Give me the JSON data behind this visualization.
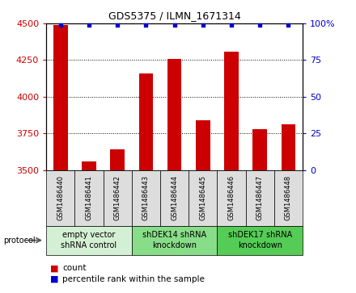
{
  "title": "GDS5375 / ILMN_1671314",
  "categories": [
    "GSM1486440",
    "GSM1486441",
    "GSM1486442",
    "GSM1486443",
    "GSM1486444",
    "GSM1486445",
    "GSM1486446",
    "GSM1486447",
    "GSM1486448"
  ],
  "counts": [
    4490,
    3560,
    3640,
    4160,
    4260,
    3840,
    4310,
    3780,
    3810
  ],
  "percentiles": [
    99,
    99,
    99,
    99,
    99,
    99,
    99,
    99,
    99
  ],
  "ylim_left": [
    3500,
    4500
  ],
  "ylim_right": [
    0,
    100
  ],
  "yticks_left": [
    3500,
    3750,
    4000,
    4250,
    4500
  ],
  "yticks_right": [
    0,
    25,
    50,
    75,
    100
  ],
  "bar_color": "#cc0000",
  "dot_color": "#0000cc",
  "bar_width": 0.5,
  "groups": [
    {
      "label": "empty vector\nshRNA control",
      "start": 0,
      "end": 3,
      "color": "#d4f0d4"
    },
    {
      "label": "shDEK14 shRNA\nknockdown",
      "start": 3,
      "end": 6,
      "color": "#88dd88"
    },
    {
      "label": "shDEK17 shRNA\nknockdown",
      "start": 6,
      "end": 9,
      "color": "#55cc55"
    }
  ],
  "protocol_label": "protocol",
  "legend_count_label": "count",
  "legend_percentile_label": "percentile rank within the sample",
  "background_color": "#ffffff",
  "tick_label_bg": "#dddddd",
  "title_fontsize": 9,
  "axis_fontsize": 8,
  "tick_fontsize": 8,
  "label_fontsize": 6,
  "group_fontsize": 7
}
